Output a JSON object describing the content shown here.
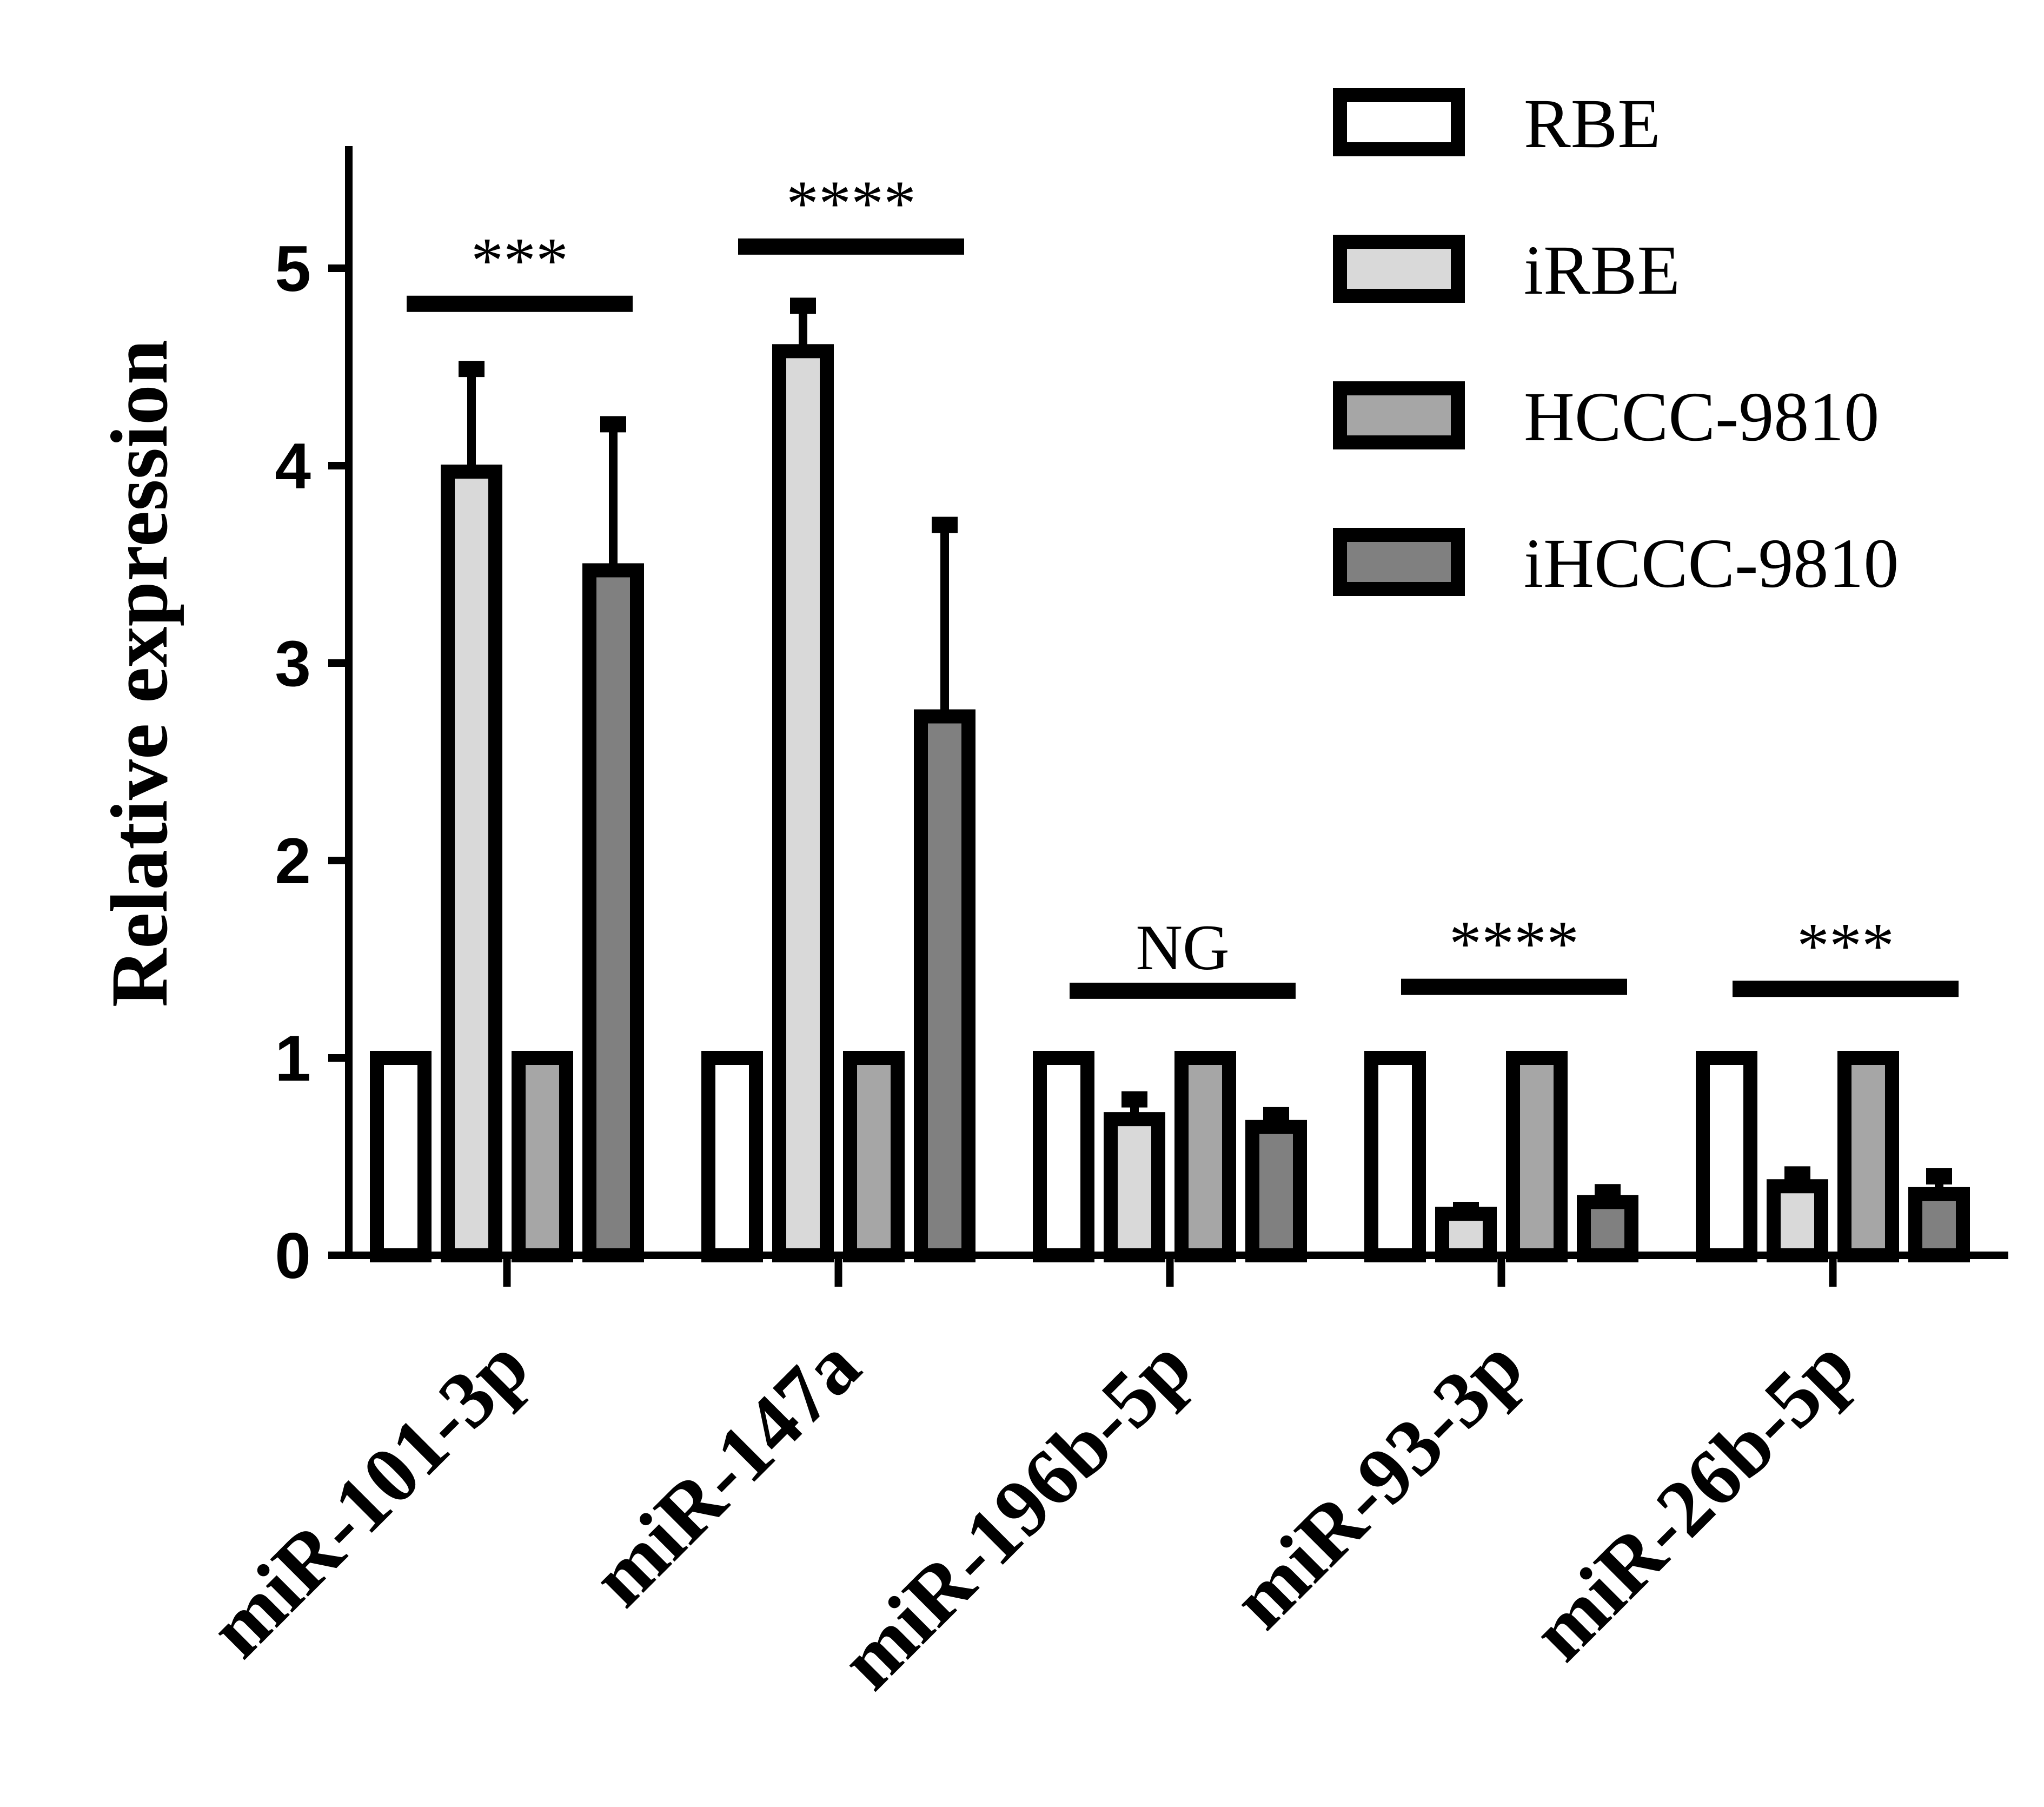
{
  "chart_data": {
    "type": "bar",
    "ylabel": "Relative expression",
    "xlabel": "",
    "ylim": [
      0,
      5.6
    ],
    "yticks": [
      0,
      1,
      2,
      3,
      4,
      5
    ],
    "categories": [
      "miR-101-3p",
      "miR-147a",
      "miR-196b-5p",
      "miR-93-3p",
      "miR-26b-5p"
    ],
    "series": [
      {
        "name": "RBE",
        "color": "#ffffff",
        "values": [
          1,
          1,
          1,
          1,
          1
        ],
        "errors": [
          0,
          0,
          0,
          0,
          0
        ]
      },
      {
        "name": "iRBE",
        "color": "#d9d9d9",
        "values": [
          3.97,
          4.58,
          0.69,
          0.21,
          0.35
        ],
        "errors": [
          0.52,
          0.23,
          0.1,
          0.02,
          0.06
        ]
      },
      {
        "name": "HCCC-9810",
        "color": "#a6a6a6",
        "values": [
          1,
          1,
          1,
          1,
          1
        ],
        "errors": [
          0,
          0,
          0,
          0,
          0
        ]
      },
      {
        "name": "iHCCC-9810",
        "color": "#808080",
        "values": [
          3.47,
          2.73,
          0.65,
          0.27,
          0.31
        ],
        "errors": [
          0.74,
          0.97,
          0.06,
          0.05,
          0.09
        ]
      }
    ],
    "significance": [
      {
        "label": "***",
        "y": 4.82
      },
      {
        "label": "****",
        "y": 5.11
      },
      {
        "label": "NG",
        "y": 1.34
      },
      {
        "label": "****",
        "y": 1.36
      },
      {
        "label": "***",
        "y": 1.35
      }
    ],
    "legend_position": "top-right",
    "grid": false
  }
}
